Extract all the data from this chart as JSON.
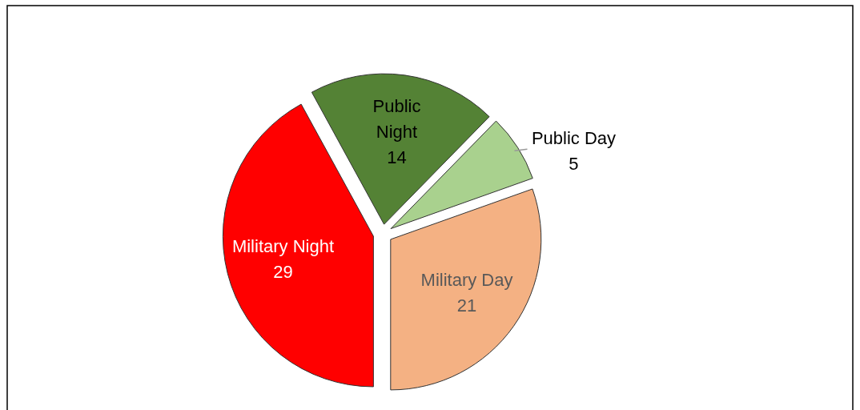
{
  "chart_data": {
    "type": "pie",
    "categories": [
      "Military Night",
      "Public Night",
      "Public Day",
      "Military Day"
    ],
    "values": [
      29,
      14,
      5,
      21
    ],
    "colors": [
      "#ff0000",
      "#548235",
      "#a9d18e",
      "#f4b183"
    ],
    "data_labels": true
  }
}
